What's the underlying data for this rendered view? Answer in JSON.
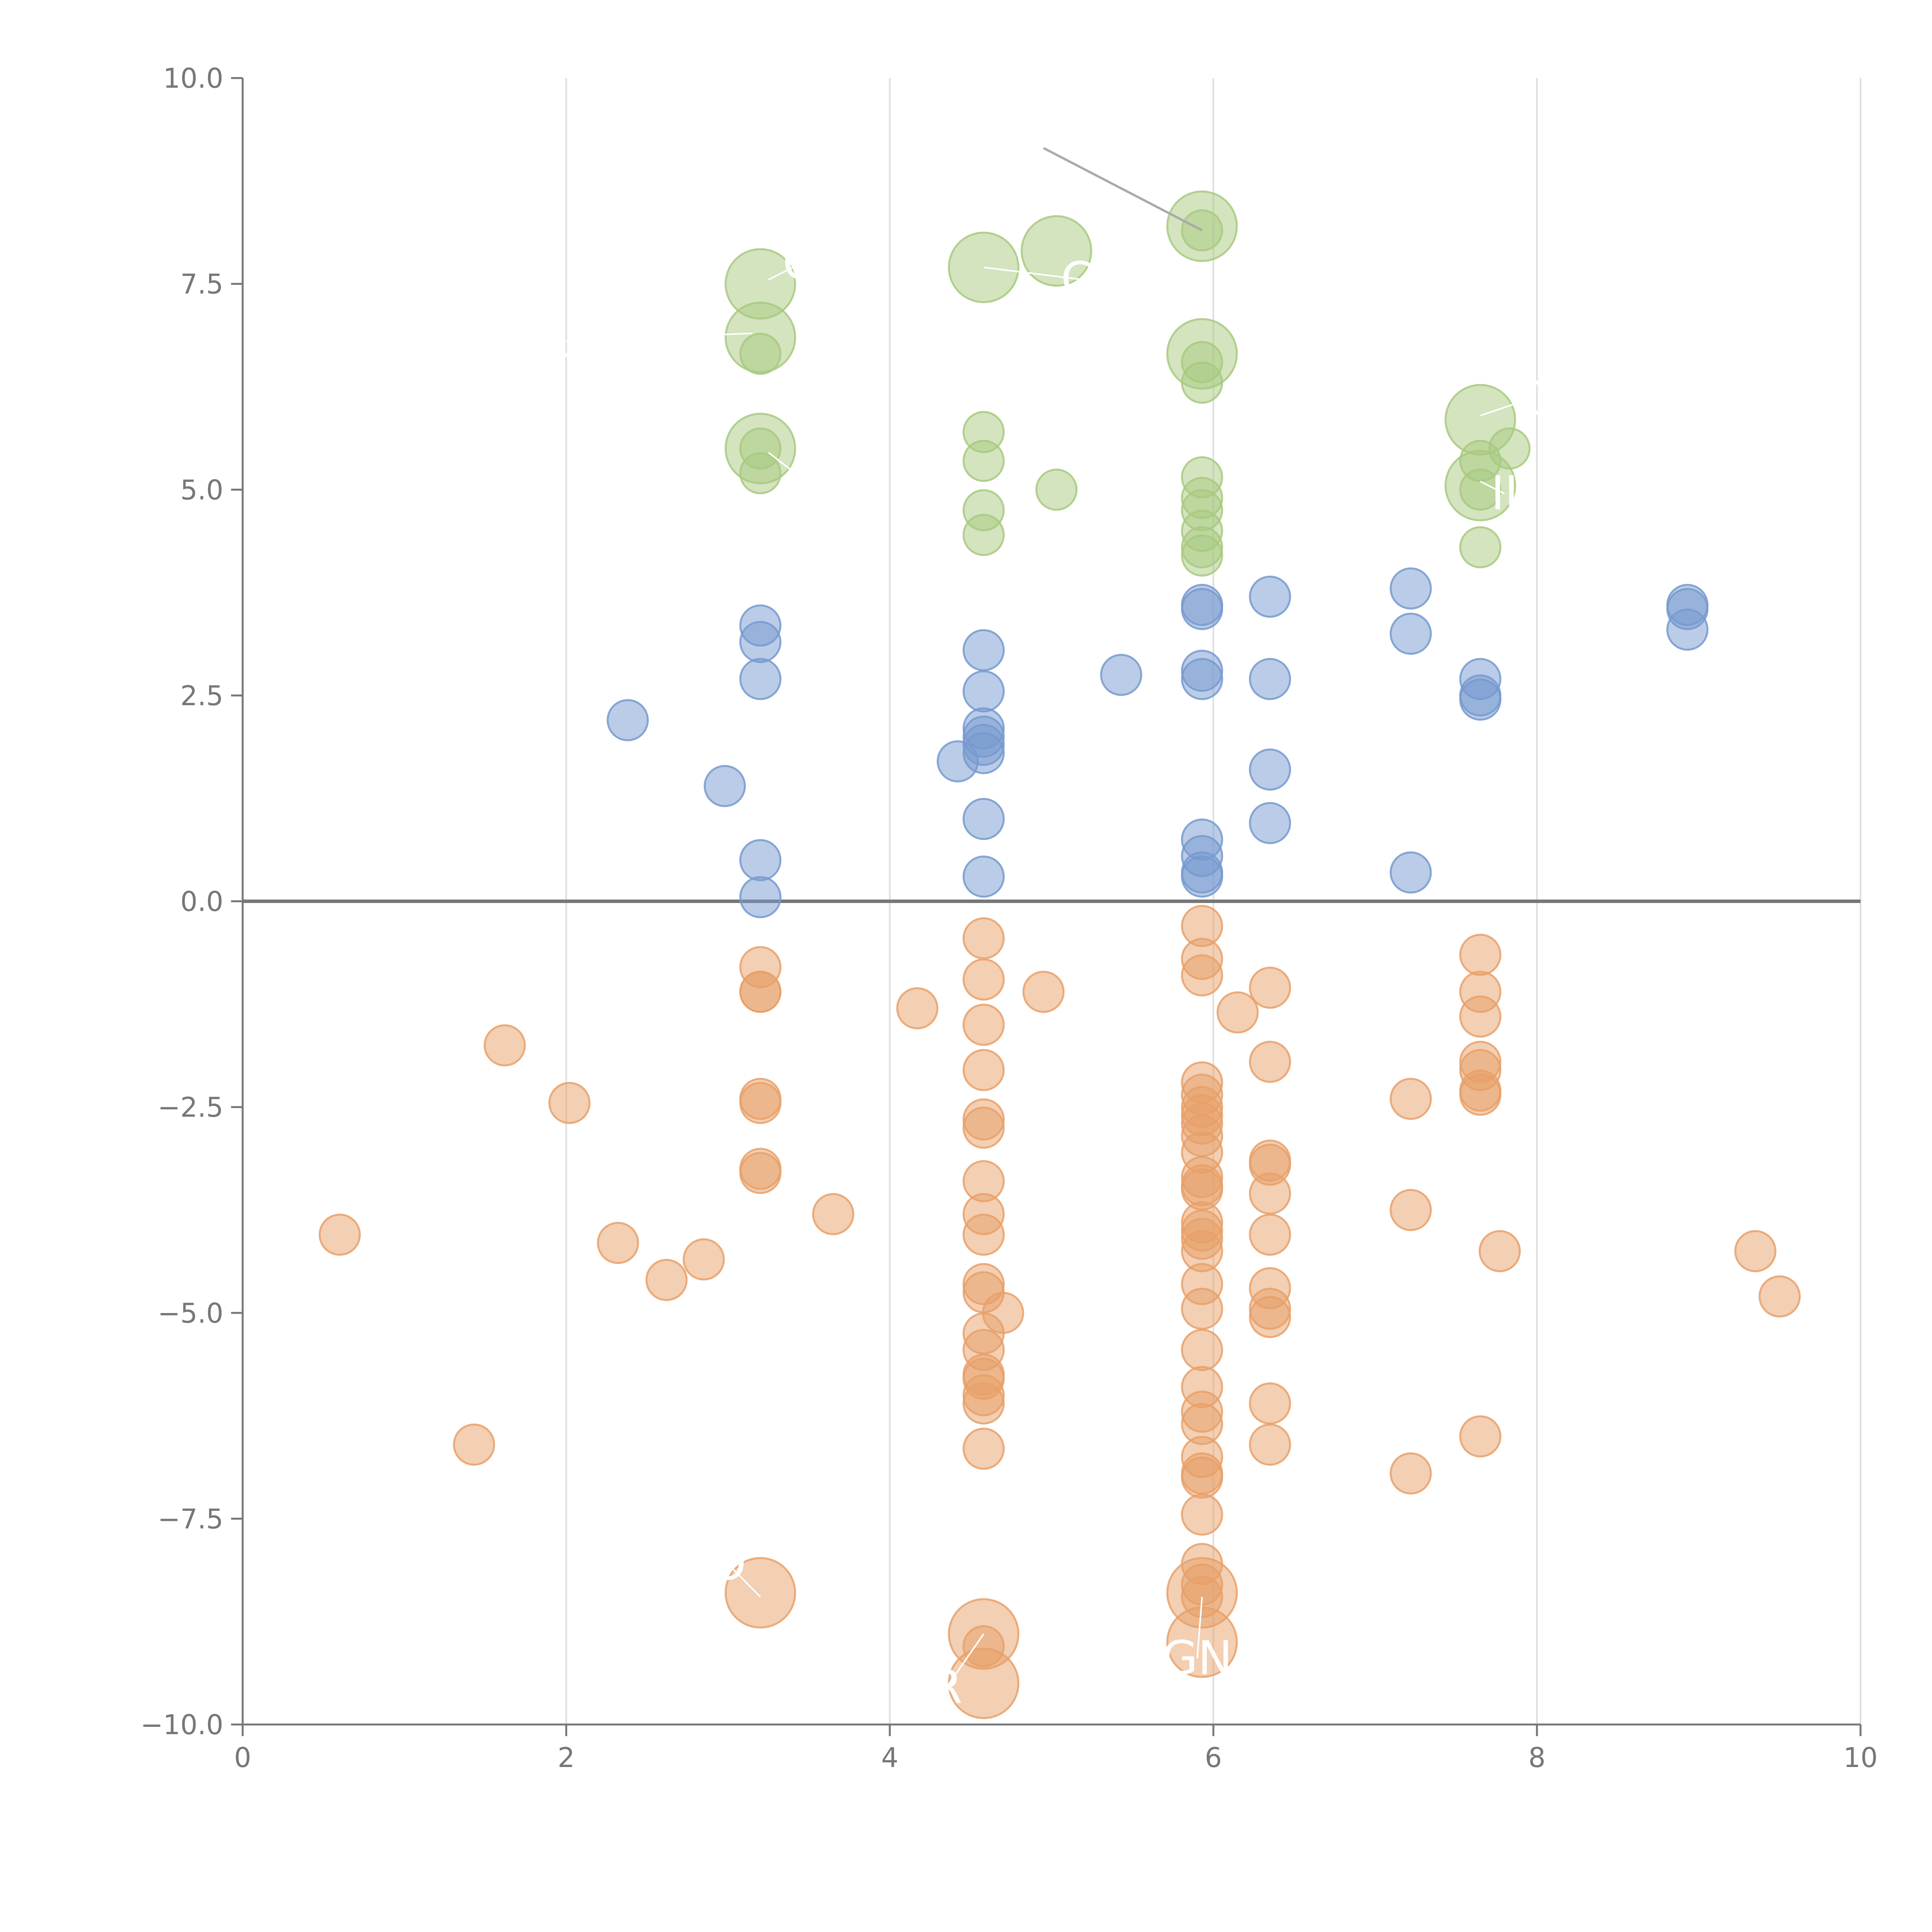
{
  "chart_data": {
    "type": "scatter",
    "title": "",
    "xlabel": "",
    "ylabel": "",
    "xlim": [
      0,
      10
    ],
    "ylim": [
      -10,
      10
    ],
    "grid_x": true,
    "grid_y": false,
    "x_ticks": [
      0,
      2,
      4,
      6,
      8,
      10
    ],
    "y_ticks": [
      10,
      7.5,
      5,
      2.5,
      0,
      -2.5,
      -5,
      -7.5,
      -10
    ],
    "x_tick_labels": [
      "0",
      "2",
      "4",
      "6",
      "8",
      "10"
    ],
    "y_tick_labels": [
      "10.0",
      "7.5",
      "5.0",
      "2.5",
      "0.0",
      "−2.5",
      "−5.0",
      "−7.5",
      "−10.0"
    ],
    "colors": {
      "green": "#a8c97f",
      "blue": "#7699cf",
      "orange": "#e7a068",
      "axis": "#777777",
      "grid": "#dddddd",
      "zero_line": "#777777"
    },
    "series": [
      {
        "name": "green",
        "color": "#a8c97f",
        "points": [
          [
            3.2,
            7.5,
            2
          ],
          [
            3.2,
            6.85,
            2
          ],
          [
            3.2,
            6.65,
            1
          ],
          [
            3.2,
            5.5,
            2
          ],
          [
            3.2,
            5.5,
            1
          ],
          [
            3.2,
            5.2,
            1
          ],
          [
            4.58,
            7.7,
            2
          ],
          [
            5.03,
            7.9,
            2
          ],
          [
            4.58,
            5.7,
            1
          ],
          [
            4.58,
            5.35,
            1
          ],
          [
            5.03,
            5.0,
            1
          ],
          [
            4.58,
            4.75,
            1
          ],
          [
            4.58,
            4.45,
            1
          ],
          [
            5.93,
            8.2,
            2
          ],
          [
            5.93,
            8.15,
            1
          ],
          [
            5.93,
            6.65,
            2
          ],
          [
            5.93,
            6.55,
            1
          ],
          [
            5.93,
            6.3,
            1
          ],
          [
            5.93,
            5.15,
            1
          ],
          [
            5.93,
            4.9,
            1
          ],
          [
            5.93,
            4.75,
            1
          ],
          [
            5.93,
            4.5,
            1
          ],
          [
            5.93,
            4.3,
            1
          ],
          [
            5.93,
            4.2,
            1
          ],
          [
            7.65,
            5.85,
            2
          ],
          [
            7.83,
            5.5,
            1
          ],
          [
            7.65,
            5.35,
            1
          ],
          [
            7.65,
            5.05,
            2
          ],
          [
            7.65,
            5.0,
            1
          ],
          [
            7.65,
            4.3,
            1
          ]
        ]
      },
      {
        "name": "blue",
        "color": "#7699cf",
        "points": [
          [
            2.38,
            2.2,
            1
          ],
          [
            2.98,
            1.4,
            1
          ],
          [
            3.2,
            3.35,
            1
          ],
          [
            3.2,
            3.15,
            1
          ],
          [
            3.2,
            2.7,
            1
          ],
          [
            3.2,
            0.5,
            1
          ],
          [
            3.2,
            0.05,
            1
          ],
          [
            4.42,
            1.7,
            1
          ],
          [
            4.58,
            3.05,
            1
          ],
          [
            4.58,
            2.55,
            1
          ],
          [
            4.58,
            2.1,
            1
          ],
          [
            4.58,
            2.0,
            1
          ],
          [
            4.58,
            1.9,
            1
          ],
          [
            4.58,
            1.8,
            1
          ],
          [
            4.58,
            1.0,
            1
          ],
          [
            4.58,
            0.3,
            1
          ],
          [
            5.43,
            2.75,
            1
          ],
          [
            5.93,
            3.6,
            1
          ],
          [
            5.93,
            3.55,
            1
          ],
          [
            5.93,
            2.8,
            1
          ],
          [
            5.93,
            2.7,
            1
          ],
          [
            5.93,
            0.75,
            1
          ],
          [
            5.93,
            0.55,
            1
          ],
          [
            5.93,
            0.35,
            1
          ],
          [
            5.93,
            0.3,
            1
          ],
          [
            6.35,
            3.7,
            1
          ],
          [
            6.35,
            2.7,
            1
          ],
          [
            6.35,
            1.6,
            1
          ],
          [
            6.35,
            0.95,
            1
          ],
          [
            7.22,
            3.8,
            1
          ],
          [
            7.22,
            3.25,
            1
          ],
          [
            7.22,
            0.35,
            1
          ],
          [
            7.65,
            2.7,
            1
          ],
          [
            7.65,
            2.5,
            1
          ],
          [
            7.65,
            2.45,
            1
          ],
          [
            8.93,
            3.6,
            1
          ],
          [
            8.93,
            3.55,
            1
          ],
          [
            8.93,
            3.3,
            1
          ]
        ]
      },
      {
        "name": "orange",
        "color": "#e7a068",
        "points": [
          [
            0.6,
            -4.05,
            1
          ],
          [
            1.43,
            -6.6,
            1
          ],
          [
            1.62,
            -1.75,
            1
          ],
          [
            2.02,
            -2.45,
            1
          ],
          [
            2.32,
            -4.15,
            1
          ],
          [
            2.62,
            -4.6,
            1
          ],
          [
            2.85,
            -4.35,
            1
          ],
          [
            3.2,
            -0.8,
            1
          ],
          [
            3.2,
            -1.1,
            1
          ],
          [
            3.2,
            -1.1,
            1
          ],
          [
            3.2,
            -2.4,
            1
          ],
          [
            3.2,
            -2.45,
            1
          ],
          [
            3.2,
            -3.25,
            1
          ],
          [
            3.2,
            -3.3,
            1
          ],
          [
            3.2,
            -8.4,
            2
          ],
          [
            3.65,
            -3.8,
            1
          ],
          [
            4.17,
            -1.3,
            1
          ],
          [
            4.95,
            -1.1,
            1
          ],
          [
            4.7,
            -5.0,
            1
          ],
          [
            4.58,
            -0.45,
            1
          ],
          [
            4.58,
            -0.95,
            1
          ],
          [
            4.58,
            -1.5,
            1
          ],
          [
            4.58,
            -2.05,
            1
          ],
          [
            4.58,
            -2.65,
            1
          ],
          [
            4.58,
            -2.75,
            1
          ],
          [
            4.58,
            -3.4,
            1
          ],
          [
            4.58,
            -3.8,
            1
          ],
          [
            4.58,
            -4.05,
            1
          ],
          [
            4.58,
            -4.65,
            1
          ],
          [
            4.58,
            -4.75,
            1
          ],
          [
            4.58,
            -5.25,
            1
          ],
          [
            4.58,
            -5.45,
            1
          ],
          [
            4.58,
            -5.75,
            1
          ],
          [
            4.58,
            -5.8,
            1
          ],
          [
            4.58,
            -6.0,
            1
          ],
          [
            4.58,
            -6.1,
            1
          ],
          [
            4.58,
            -6.65,
            1
          ],
          [
            4.58,
            -8.9,
            2
          ],
          [
            4.58,
            -9.05,
            1
          ],
          [
            4.58,
            -9.5,
            2
          ],
          [
            5.93,
            -0.3,
            1
          ],
          [
            5.93,
            -0.7,
            1
          ],
          [
            5.93,
            -0.9,
            1
          ],
          [
            6.15,
            -1.35,
            1
          ],
          [
            5.93,
            -2.2,
            1
          ],
          [
            5.93,
            -2.35,
            1
          ],
          [
            5.93,
            -2.5,
            1
          ],
          [
            5.93,
            -2.6,
            1
          ],
          [
            5.93,
            -2.7,
            1
          ],
          [
            5.93,
            -2.85,
            1
          ],
          [
            5.93,
            -3.05,
            1
          ],
          [
            5.93,
            -3.35,
            1
          ],
          [
            5.93,
            -3.45,
            1
          ],
          [
            5.93,
            -3.5,
            1
          ],
          [
            5.93,
            -3.9,
            1
          ],
          [
            5.93,
            -4.0,
            1
          ],
          [
            5.93,
            -4.1,
            1
          ],
          [
            5.93,
            -4.25,
            1
          ],
          [
            5.93,
            -4.65,
            1
          ],
          [
            5.93,
            -4.95,
            1
          ],
          [
            5.93,
            -5.45,
            1
          ],
          [
            5.93,
            -5.9,
            1
          ],
          [
            5.93,
            -6.2,
            1
          ],
          [
            5.93,
            -6.35,
            1
          ],
          [
            5.93,
            -6.75,
            1
          ],
          [
            5.93,
            -6.95,
            1
          ],
          [
            5.93,
            -7.0,
            1
          ],
          [
            5.93,
            -7.45,
            1
          ],
          [
            5.93,
            -8.05,
            1
          ],
          [
            5.93,
            -8.3,
            1
          ],
          [
            5.93,
            -8.4,
            2
          ],
          [
            5.93,
            -8.45,
            1
          ],
          [
            5.93,
            -9.0,
            2
          ],
          [
            6.35,
            -1.05,
            1
          ],
          [
            6.35,
            -1.95,
            1
          ],
          [
            6.35,
            -3.15,
            1
          ],
          [
            6.35,
            -3.2,
            1
          ],
          [
            6.35,
            -3.55,
            1
          ],
          [
            6.35,
            -4.05,
            1
          ],
          [
            6.35,
            -4.7,
            1
          ],
          [
            6.35,
            -4.95,
            1
          ],
          [
            6.35,
            -5.05,
            1
          ],
          [
            6.35,
            -6.1,
            1
          ],
          [
            6.35,
            -6.6,
            1
          ],
          [
            7.22,
            -2.4,
            1
          ],
          [
            7.22,
            -3.75,
            1
          ],
          [
            7.22,
            -6.95,
            1
          ],
          [
            7.65,
            -0.65,
            1
          ],
          [
            7.65,
            -1.1,
            1
          ],
          [
            7.65,
            -1.4,
            1
          ],
          [
            7.65,
            -1.95,
            1
          ],
          [
            7.65,
            -2.05,
            1
          ],
          [
            7.65,
            -2.3,
            1
          ],
          [
            7.65,
            -2.35,
            1
          ],
          [
            7.65,
            -6.5,
            1
          ],
          [
            7.77,
            -4.25,
            1
          ],
          [
            9.35,
            -4.25,
            1
          ],
          [
            9.5,
            -4.8,
            1
          ]
        ]
      }
    ],
    "annotations": [
      {
        "text": "O",
        "x": 3.45,
        "y": 7.75,
        "ax": 3.25,
        "ay": 7.55
      },
      {
        "text": "CI",
        "x": 5.2,
        "y": 7.55,
        "ax": 4.58,
        "ay": 7.7
      },
      {
        "text": "L",
        "x": 1.95,
        "y": 6.8,
        "ax": 3.15,
        "ay": 6.9
      },
      {
        "text": "L",
        "x": 3.55,
        "y": 5.0,
        "ax": 3.25,
        "ay": 5.45
      },
      {
        "text": "C",
        "x": 7.95,
        "y": 6.1,
        "ax": 7.65,
        "ay": 5.9
      },
      {
        "text": "II",
        "x": 7.8,
        "y": 4.95,
        "ax": 7.65,
        "ay": 5.1
      },
      {
        "text": "O",
        "x": 3.0,
        "y": -8.05,
        "ax": 3.2,
        "ay": -8.45
      },
      {
        "text": "R",
        "x": 4.35,
        "y": -9.55,
        "ax": 4.58,
        "ay": -8.9
      },
      {
        "text": "GN",
        "x": 5.9,
        "y": -9.2,
        "ax": 5.93,
        "ay": -8.45
      }
    ],
    "connector": {
      "x1": 4.95,
      "y1": 9.15,
      "x2": 5.93,
      "y2": 8.15
    }
  }
}
